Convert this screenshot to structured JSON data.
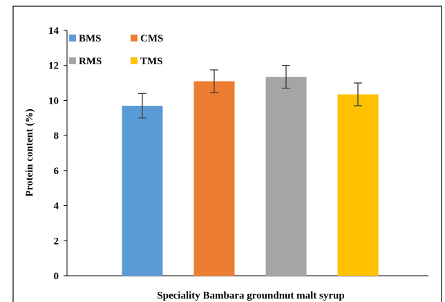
{
  "chart_data": {
    "type": "bar",
    "title": "",
    "xlabel": "Speciality Bambara groundnut malt syrup",
    "ylabel": "Protein content  (%)",
    "ylim": [
      0,
      14
    ],
    "yticks": [
      0,
      2,
      4,
      6,
      8,
      10,
      12,
      14
    ],
    "grid": false,
    "legend_position": "top-left",
    "series": [
      {
        "name": "BMS",
        "value": 9.7,
        "error": 0.7,
        "color": "#5B9BD5"
      },
      {
        "name": "CMS",
        "value": 11.1,
        "error": 0.65,
        "color": "#ED7D31"
      },
      {
        "name": "RMS",
        "value": 11.35,
        "error": 0.65,
        "color": "#A5A5A5"
      },
      {
        "name": "TMS",
        "value": 10.35,
        "error": 0.65,
        "color": "#FFC000"
      }
    ]
  }
}
